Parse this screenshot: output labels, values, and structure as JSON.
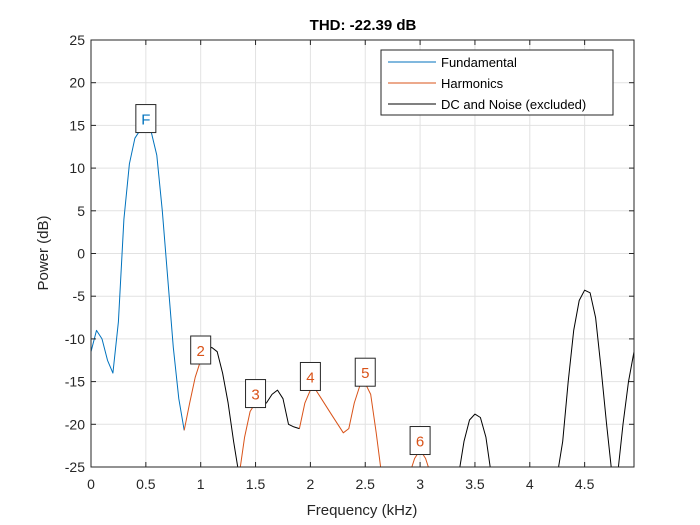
{
  "chart_data": {
    "type": "line",
    "title": "THD: -22.39 dB",
    "xlabel": "Frequency (kHz)",
    "ylabel": "Power (dB)",
    "xlim": [
      0,
      4.95
    ],
    "ylim": [
      -25,
      25
    ],
    "xticks": [
      0,
      0.5,
      1,
      1.5,
      2,
      2.5,
      3,
      3.5,
      4,
      4.5
    ],
    "xtick_labels": [
      "0",
      "0.5",
      "1",
      "1.5",
      "2",
      "2.5",
      "3",
      "3.5",
      "4",
      "4.5"
    ],
    "yticks": [
      -25,
      -20,
      -15,
      -10,
      -5,
      0,
      5,
      10,
      15,
      20,
      25
    ],
    "ytick_labels": [
      "-25",
      "-20",
      "-15",
      "-10",
      "-5",
      "0",
      "5",
      "10",
      "15",
      "20",
      "25"
    ],
    "grid": true,
    "legend_position": "top-right",
    "series": [
      {
        "name": "Fundamental",
        "color": "#0072BD",
        "x": [
          0,
          0.05,
          0.1,
          0.15,
          0.2,
          0.25,
          0.3,
          0.35,
          0.4,
          0.45,
          0.5,
          0.55,
          0.6,
          0.65,
          0.7,
          0.75,
          0.8,
          0.85
        ],
        "y": [
          -11.5,
          -9,
          -10,
          -12.5,
          -14,
          -8,
          4,
          10.5,
          13.5,
          14.5,
          14.8,
          14.2,
          11.5,
          5,
          -3,
          -11,
          -17,
          -20.7
        ]
      },
      {
        "name": "Harmonics",
        "color": "#D95319",
        "segments": [
          {
            "x": [
              0.85,
              0.9,
              0.95,
              1,
              1.05
            ],
            "y": [
              -20.7,
              -17.5,
              -14.5,
              -12.5,
              -11.5
            ]
          },
          {
            "x": [
              1.35,
              1.4,
              1.45,
              1.5,
              1.55
            ],
            "y": [
              -26,
              -21.5,
              -18.5,
              -17.5,
              -17.8
            ]
          },
          {
            "x": [
              1.9,
              1.95,
              2,
              2.05,
              2.1,
              2.15,
              2.2,
              2.25,
              2.3,
              2.35,
              2.4,
              2.45,
              2.5,
              2.55,
              2.6,
              2.65
            ],
            "y": [
              -20.5,
              -17.5,
              -16,
              -16,
              -17,
              -18,
              -19,
              -20,
              -21,
              -20.5,
              -17.5,
              -15.5,
              -15.2,
              -16.5,
              -21,
              -26
            ]
          },
          {
            "x": [
              2.9,
              2.95,
              3,
              3.05,
              3.1
            ],
            "y": [
              -26,
              -24,
              -23,
              -24,
              -26
            ]
          }
        ]
      },
      {
        "name": "DC and Noise (excluded)",
        "color": "#000000",
        "segments": [
          {
            "x": [
              1.05,
              1.1,
              1.15,
              1.2,
              1.25,
              1.3,
              1.35
            ],
            "y": [
              -11.5,
              -11,
              -11.5,
              -14,
              -17.5,
              -22,
              -26
            ]
          },
          {
            "x": [
              1.55,
              1.6,
              1.65,
              1.7,
              1.75,
              1.8,
              1.85,
              1.9
            ],
            "y": [
              -17.8,
              -17.5,
              -16.5,
              -16,
              -17,
              -20,
              -20.3,
              -20.5
            ]
          },
          {
            "x": [
              3.35,
              3.4,
              3.45,
              3.5,
              3.55,
              3.6,
              3.65
            ],
            "y": [
              -26,
              -22,
              -19.5,
              -18.8,
              -19.2,
              -21.5,
              -26
            ]
          },
          {
            "x": [
              4.25,
              4.3,
              4.35,
              4.4,
              4.45,
              4.5,
              4.55,
              4.6,
              4.65,
              4.7,
              4.75
            ],
            "y": [
              -26,
              -22,
              -15,
              -9,
              -5.5,
              -4.3,
              -4.6,
              -7.5,
              -13.5,
              -20,
              -26
            ]
          },
          {
            "x": [
              4.8,
              4.85,
              4.9,
              4.95
            ],
            "y": [
              -26,
              -20,
              -15,
              -11.5
            ]
          }
        ]
      }
    ],
    "annotations": [
      {
        "label": "F",
        "x": 0.5,
        "y": 15.8,
        "color": "#0072BD"
      },
      {
        "label": "2",
        "x": 1.0,
        "y": -11.3,
        "color": "#D95319"
      },
      {
        "label": "3",
        "x": 1.5,
        "y": -16.4,
        "color": "#D95319"
      },
      {
        "label": "4",
        "x": 2.0,
        "y": -14.4,
        "color": "#D95319"
      },
      {
        "label": "5",
        "x": 2.5,
        "y": -13.9,
        "color": "#D95319"
      },
      {
        "label": "6",
        "x": 3.0,
        "y": -21.9,
        "color": "#D95319"
      }
    ]
  }
}
